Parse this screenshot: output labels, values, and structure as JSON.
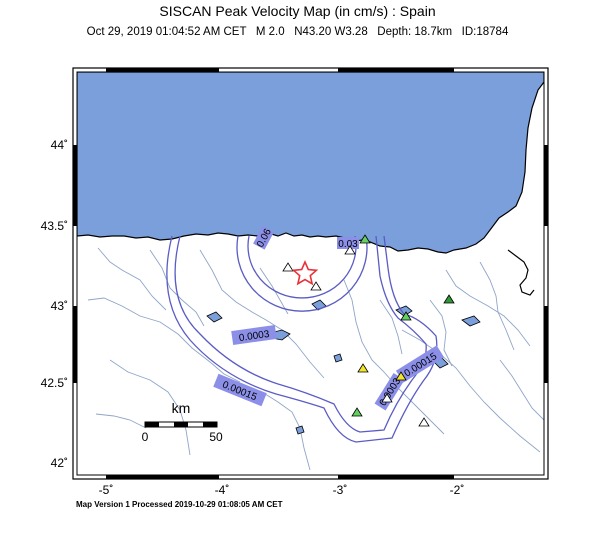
{
  "header": {
    "title": "SISCAN Peak Velocity Map (in cm/s) : Spain",
    "subtitle": "Oct 29, 2019 01:04:52 AM CET   M 2.0   N43.20 W3.28   Depth: 18.7km   ID:18784"
  },
  "footer": {
    "text": "Map Version 1 Processed 2019-10-29 01:08:05 AM CET"
  },
  "map": {
    "longitude_ticks": [
      "-5˚",
      "-4˚",
      "-3˚",
      "-2˚"
    ],
    "latitude_ticks": [
      "44˚",
      "43.5˚",
      "43˚",
      "42.5˚",
      "42˚"
    ],
    "scale_bar": {
      "unit": "km",
      "start": "0",
      "end": "50"
    },
    "contour_labels": [
      "0.06",
      "0.03",
      "0.0003",
      "0.00015",
      "0.00015",
      "0.0003"
    ],
    "epicenter": {
      "lon": -3.28,
      "lat": 43.2
    },
    "colors": {
      "sea": "#7b9fdb",
      "land": "#ffffff",
      "contour": "#5a5cc4",
      "label_fill": "#8c8fe8",
      "river": "#8fa5c8",
      "epicenter": "#e8323a",
      "station_green": "#2f9a33",
      "station_lightgreen": "#64d060",
      "station_yellow": "#f2e62c",
      "station_white": "#ffffff"
    }
  }
}
